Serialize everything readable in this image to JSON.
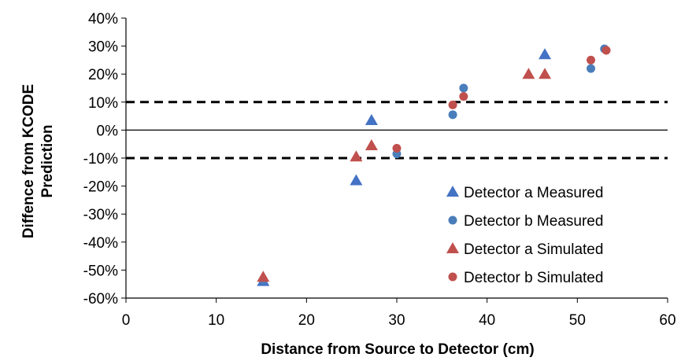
{
  "chart_data": {
    "type": "scatter",
    "title": "",
    "xlabel": "Distance from Source to Detector (cm)",
    "ylabel_lines": [
      "Diffence from KCODE",
      "Prediction"
    ],
    "xlim": [
      0,
      60
    ],
    "ylim": [
      -60,
      40
    ],
    "x_ticks": [
      0,
      10,
      20,
      30,
      40,
      50,
      60
    ],
    "y_ticks": [
      40,
      30,
      20,
      10,
      0,
      -10,
      -20,
      -30,
      -40,
      -50,
      -60
    ],
    "y_tick_labels": [
      "40%",
      "30%",
      "20%",
      "10%",
      "0%",
      "-10%",
      "-20%",
      "-30%",
      "-40%",
      "-50%",
      "-60%"
    ],
    "x_tick_labels": [
      "0",
      "10",
      "20",
      "30",
      "40",
      "50",
      "60"
    ],
    "grid": false,
    "reference_lines": [
      {
        "y": 10,
        "style": "dashed"
      },
      {
        "y": 0,
        "style": "solid"
      },
      {
        "y": -10,
        "style": "dashed"
      }
    ],
    "legend_position": "bottom-right",
    "series": [
      {
        "name": "Detector a Measured",
        "marker": "triangle",
        "color": "#4472C4",
        "x": [
          15.2,
          25.5,
          27.2,
          46.4
        ],
        "y": [
          -54,
          -18,
          3.5,
          27
        ]
      },
      {
        "name": "Detector b Measured",
        "marker": "circle",
        "color": "#4A7EBB",
        "x": [
          15.2,
          30,
          36.2,
          37.4,
          51.5,
          53
        ],
        "y": [
          -53.5,
          -8.5,
          5.5,
          15,
          22,
          29
        ]
      },
      {
        "name": "Detector a Simulated",
        "marker": "triangle",
        "color": "#C0504D",
        "x": [
          15.2,
          25.5,
          27.2,
          44.6,
          46.4
        ],
        "y": [
          -52.5,
          -9.5,
          -5.5,
          20,
          20
        ]
      },
      {
        "name": "Detector b Simulated",
        "marker": "circle",
        "color": "#C0504D",
        "x": [
          30,
          36.2,
          37.4,
          51.5,
          53.2
        ],
        "y": [
          -6.5,
          9,
          12,
          25,
          28.5
        ]
      }
    ]
  }
}
